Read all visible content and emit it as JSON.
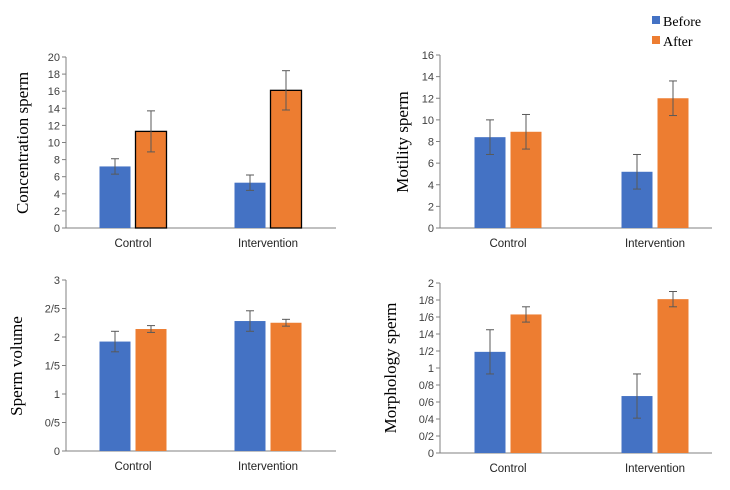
{
  "legend": [
    {
      "name": "Before",
      "color": "#4472C4"
    },
    {
      "name": "After",
      "color": "#ED7D31"
    }
  ],
  "chart_data": [
    {
      "type": "bar",
      "ylabel": "Concentration sperm",
      "categories": [
        "Control",
        "Intervention"
      ],
      "ylim": [
        0,
        20
      ],
      "ticks": [
        0,
        2,
        4,
        6,
        8,
        10,
        12,
        14,
        16,
        18,
        20
      ],
      "tick_labels": [
        "0",
        "2",
        "4",
        "6",
        "8",
        "10",
        "12",
        "14",
        "16",
        "18",
        "20"
      ],
      "bar_outline": true,
      "series": [
        {
          "name": "Before",
          "values": [
            7.2,
            5.3
          ],
          "errors": [
            0.9,
            0.9
          ]
        },
        {
          "name": "After",
          "values": [
            11.3,
            16.1
          ],
          "errors": [
            2.4,
            2.3
          ]
        }
      ]
    },
    {
      "type": "bar",
      "ylabel": "Motility sperm",
      "categories": [
        "Control",
        "Intervention"
      ],
      "ylim": [
        0,
        16
      ],
      "ticks": [
        0,
        2,
        4,
        6,
        8,
        10,
        12,
        14,
        16
      ],
      "tick_labels": [
        "0",
        "2",
        "4",
        "6",
        "8",
        "10",
        "12",
        "14",
        "16"
      ],
      "bar_outline": false,
      "series": [
        {
          "name": "Before",
          "values": [
            8.4,
            5.2
          ],
          "errors": [
            1.6,
            1.6
          ]
        },
        {
          "name": "After",
          "values": [
            8.9,
            12.0
          ],
          "errors": [
            1.6,
            1.6
          ]
        }
      ]
    },
    {
      "type": "bar",
      "ylabel": "Sperm volume",
      "categories": [
        "Control",
        "Intervention"
      ],
      "ylim": [
        0,
        3
      ],
      "ticks": [
        0,
        0.5,
        1,
        1.5,
        2,
        2.5,
        3
      ],
      "tick_labels": [
        "0",
        "0/5",
        "1",
        "1/5",
        "2",
        "2/5",
        "3"
      ],
      "bar_outline": false,
      "series": [
        {
          "name": "Before",
          "values": [
            1.92,
            2.28
          ],
          "errors": [
            0.18,
            0.18
          ]
        },
        {
          "name": "After",
          "values": [
            2.14,
            2.25
          ],
          "errors": [
            0.06,
            0.06
          ]
        }
      ]
    },
    {
      "type": "bar",
      "ylabel": "Morphology sperm",
      "categories": [
        "Control",
        "Intervention"
      ],
      "ylim": [
        0,
        2
      ],
      "ticks": [
        0,
        0.2,
        0.4,
        0.6,
        0.8,
        1,
        1.2,
        1.4,
        1.6,
        1.8,
        2
      ],
      "tick_labels": [
        "0",
        "0/2",
        "0/4",
        "0/6",
        "0/8",
        "1",
        "1/2",
        "1/4",
        "1/6",
        "1/8",
        "2"
      ],
      "bar_outline": false,
      "series": [
        {
          "name": "Before",
          "values": [
            1.19,
            0.67
          ],
          "errors": [
            0.26,
            0.26
          ]
        },
        {
          "name": "After",
          "values": [
            1.63,
            1.81
          ],
          "errors": [
            0.09,
            0.09
          ]
        }
      ]
    }
  ]
}
